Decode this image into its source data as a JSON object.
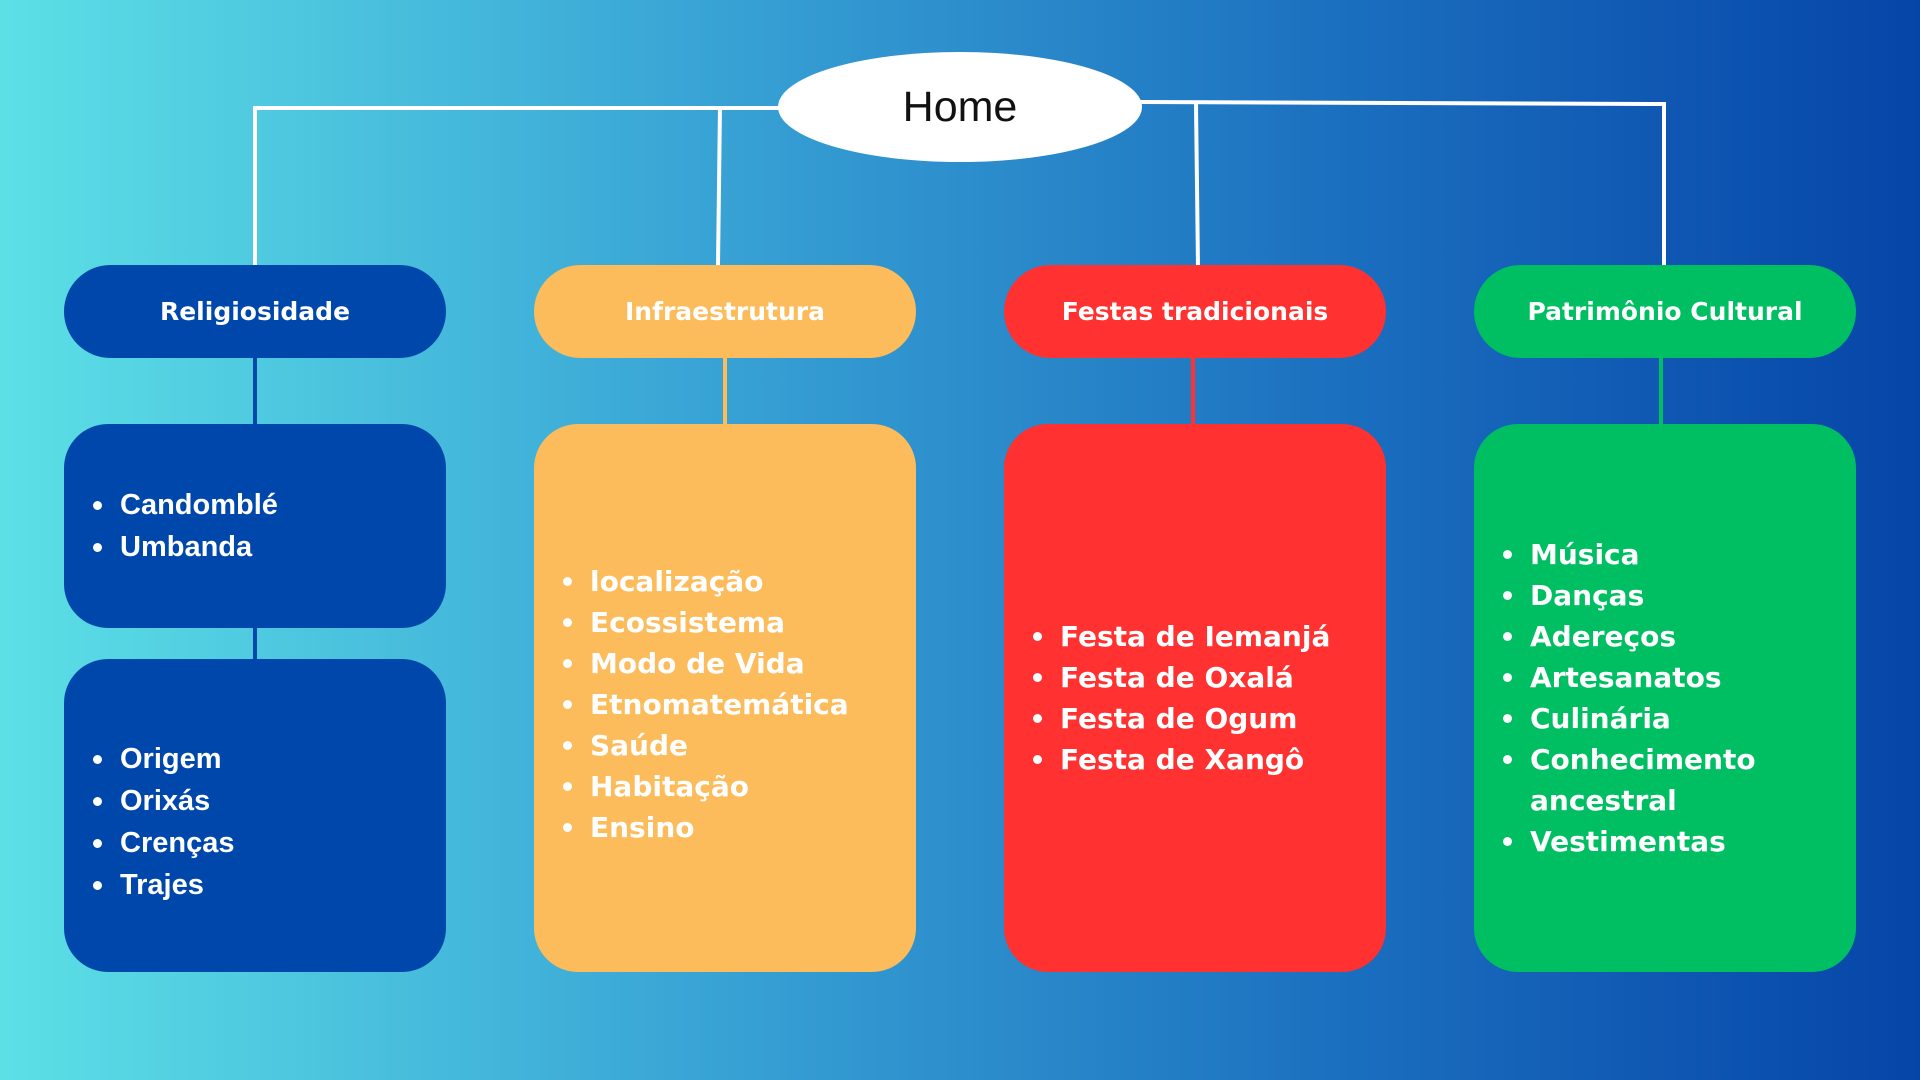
{
  "root": {
    "label": "Home"
  },
  "colors": {
    "religiosidade": "#0047ab",
    "infraestrutura": "#fdbc5b",
    "festas": "#ff3131",
    "patrimonio": "#00bf63",
    "connector": "#ffffff"
  },
  "categories": {
    "religiosidade": {
      "label": "Religiosidade",
      "groups": [
        {
          "items": [
            "Candomblé",
            "Umbanda"
          ]
        },
        {
          "items": [
            "Origem",
            "Orixás",
            "Crenças",
            "Trajes"
          ]
        }
      ]
    },
    "infraestrutura": {
      "label": "Infraestrutura",
      "items": [
        "localização",
        "Ecossistema",
        "Modo de Vida",
        "Etnomatemática",
        "Saúde",
        "Habitação",
        "Ensino"
      ]
    },
    "festas": {
      "label": "Festas tradicionais",
      "items": [
        "Festa de Iemanjá",
        "Festa de Oxalá",
        "Festa de Ogum",
        "Festa de Xangô"
      ]
    },
    "patrimonio": {
      "label": "Patrimônio Cultural",
      "items": [
        "Música",
        "Danças",
        "Adereços",
        "Artesanatos",
        "Culinária",
        "Conhecimento ancestral",
        "Vestimentas"
      ]
    }
  }
}
